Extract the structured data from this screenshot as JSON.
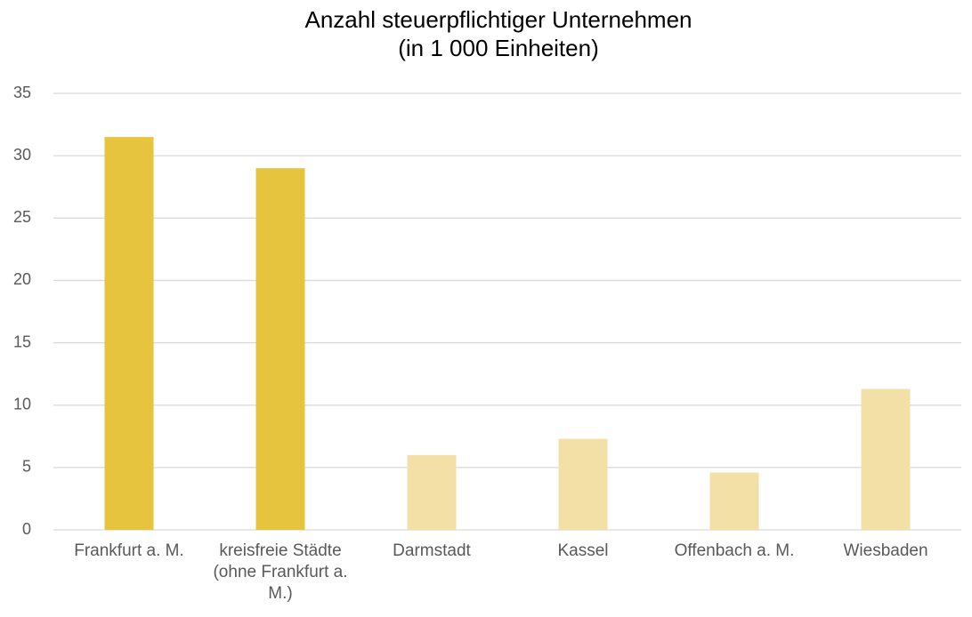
{
  "chart_data": {
    "type": "bar",
    "title": "Anzahl steuerpflichtiger Unternehmen",
    "subtitle": "(in 1 000 Einheiten)",
    "categories": [
      "Frankfurt a. M.",
      "kreisfreie Städte (ohne Frankfurt a. M.)",
      "Darmstadt",
      "Kassel",
      "Offenbach a. M.",
      "Wiesbaden"
    ],
    "values": [
      31.5,
      29.0,
      6.0,
      7.3,
      4.6,
      11.3
    ],
    "colors": [
      "#e6c43e",
      "#e6c43e",
      "#f3e0a6",
      "#f3e0a6",
      "#f3e0a6",
      "#f3e0a6"
    ],
    "ylim": [
      0,
      35
    ],
    "yticks": [
      0,
      5,
      10,
      15,
      20,
      25,
      30,
      35
    ],
    "grid": true
  }
}
